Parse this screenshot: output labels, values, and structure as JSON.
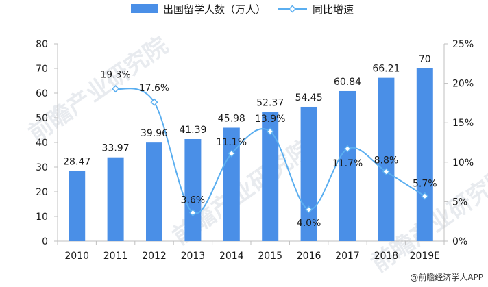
{
  "chart_data": {
    "type": "bar+line",
    "categories": [
      "2010",
      "2011",
      "2012",
      "2013",
      "2014",
      "2015",
      "2016",
      "2017",
      "2018",
      "2019E"
    ],
    "series": [
      {
        "name": "出国留学人数（万人）",
        "type": "bar",
        "axis": "left",
        "values": [
          28.47,
          33.97,
          39.96,
          41.39,
          45.98,
          52.37,
          54.45,
          60.84,
          66.21,
          70
        ],
        "labels": [
          "28.47",
          "33.97",
          "39.96",
          "41.39",
          "45.98",
          "52.37",
          "54.45",
          "60.84",
          "66.21",
          "70"
        ]
      },
      {
        "name": "同比增速",
        "type": "line",
        "axis": "right",
        "values": [
          null,
          19.3,
          17.6,
          3.6,
          11.1,
          13.9,
          4.0,
          11.7,
          8.8,
          5.7
        ],
        "labels": [
          "",
          "19.3%",
          "17.6%",
          "3.6%",
          "11.1%",
          "13.9%",
          "4.0%",
          "11.7%",
          "8.8%",
          "5.7%"
        ]
      }
    ],
    "y_left": {
      "min": 0,
      "max": 80,
      "step": 10,
      "ticks": [
        "0",
        "10",
        "20",
        "30",
        "40",
        "50",
        "60",
        "70",
        "80"
      ]
    },
    "y_right": {
      "min": 0,
      "max": 25,
      "step": 5,
      "ticks": [
        "0%",
        "5%",
        "10%",
        "15%",
        "20%",
        "25%"
      ]
    },
    "legend_position": "top-center",
    "grid": false
  },
  "colors": {
    "bar": "#4a8fe7",
    "line": "#5aaef0",
    "axis": "#bfbfbf",
    "text": "#1a1a1a"
  },
  "source_text": "@前瞻经济学人APP",
  "watermark_text": "前瞻产业研究院"
}
